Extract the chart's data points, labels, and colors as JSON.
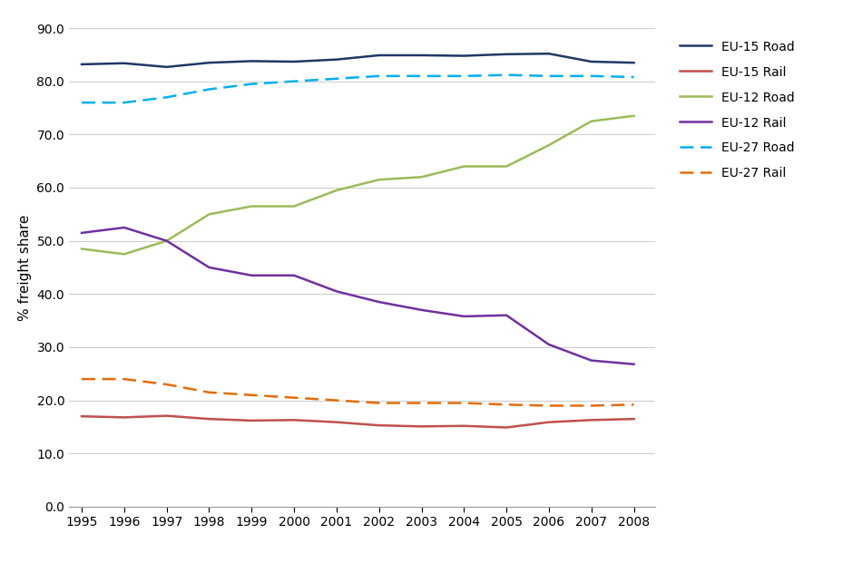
{
  "years": [
    1995,
    1996,
    1997,
    1998,
    1999,
    2000,
    2001,
    2002,
    2003,
    2004,
    2005,
    2006,
    2007,
    2008
  ],
  "eu15_road": [
    83.2,
    83.4,
    82.7,
    83.5,
    83.8,
    83.7,
    84.1,
    84.9,
    84.9,
    84.8,
    85.1,
    85.2,
    83.7,
    83.5
  ],
  "eu15_rail": [
    17.0,
    16.8,
    17.1,
    16.5,
    16.2,
    16.3,
    15.9,
    15.3,
    15.1,
    15.2,
    14.9,
    15.9,
    16.3,
    16.5
  ],
  "eu12_road": [
    48.5,
    47.5,
    50.0,
    55.0,
    56.5,
    56.5,
    59.5,
    61.5,
    62.0,
    64.0,
    64.0,
    68.0,
    72.5,
    73.5
  ],
  "eu12_rail": [
    51.5,
    52.5,
    50.0,
    45.0,
    43.5,
    43.5,
    40.5,
    38.5,
    37.0,
    35.8,
    36.0,
    30.5,
    27.5,
    26.8
  ],
  "eu27_road": [
    76.0,
    76.0,
    77.0,
    78.5,
    79.5,
    80.0,
    80.5,
    81.0,
    81.0,
    81.0,
    81.2,
    81.0,
    81.0,
    80.8
  ],
  "eu27_rail": [
    24.0,
    24.0,
    23.0,
    21.5,
    21.0,
    20.5,
    20.0,
    19.5,
    19.5,
    19.5,
    19.2,
    19.0,
    19.0,
    19.2
  ],
  "ylabel": "% freight share",
  "ylim": [
    0.0,
    90.0
  ],
  "yticks": [
    0.0,
    10.0,
    20.0,
    30.0,
    40.0,
    50.0,
    60.0,
    70.0,
    80.0,
    90.0
  ],
  "colors": {
    "eu15_road": "#1F3864",
    "eu15_rail": "#C0504D",
    "eu12_road": "#9BBB59",
    "eu12_rail": "#7030A0",
    "eu27_road": "#00B0F0",
    "eu27_rail": "#E36C09"
  },
  "legend_labels": [
    "EU-15 Road",
    "EU-15 Rail",
    "EU-12 Road",
    "EU-12 Rail",
    "EU-27 Road",
    "EU-27 Rail"
  ],
  "figsize": [
    9.5,
    6.21
  ],
  "dpi": 100
}
